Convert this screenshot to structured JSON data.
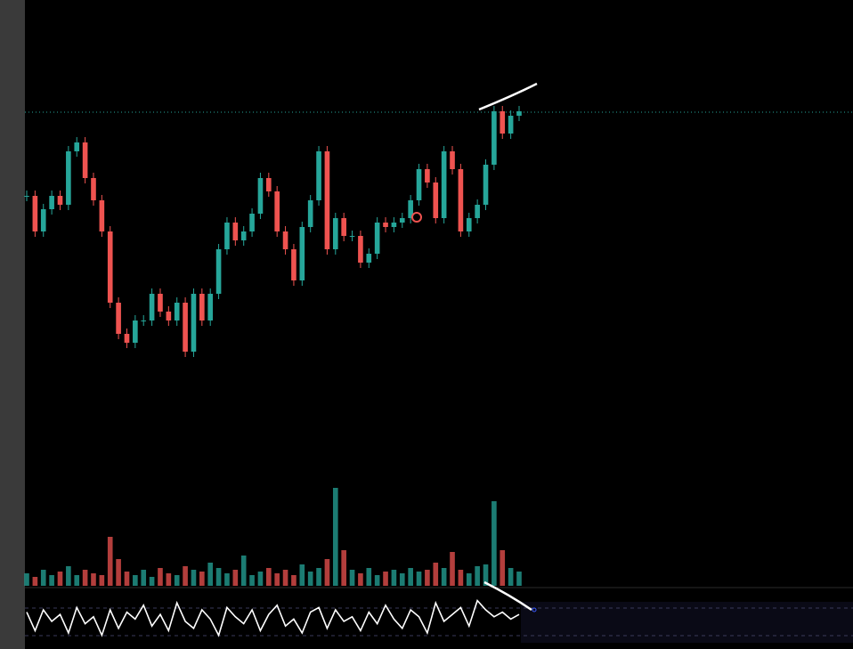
{
  "chart_data": {
    "type": "candlestick",
    "up_color": "#26a69a",
    "down_color": "#ef5350",
    "values": [
      210,
      170,
      195,
      210,
      200,
      260,
      270,
      230,
      205,
      170,
      90,
      55,
      45,
      70,
      70,
      100,
      80,
      70,
      90,
      35,
      100,
      70,
      100,
      150,
      180,
      160,
      170,
      190,
      230,
      215,
      170,
      150,
      115,
      175,
      205,
      260,
      150,
      185,
      165,
      165,
      135,
      145,
      180,
      175,
      180,
      185,
      205,
      240,
      225,
      185,
      260,
      240,
      170,
      185,
      200,
      245,
      305,
      280,
      300,
      305
    ],
    "ylim": [
      0,
      320
    ],
    "volume": {
      "values": [
        14,
        10,
        18,
        12,
        16,
        22,
        12,
        18,
        14,
        12,
        55,
        30,
        16,
        12,
        18,
        10,
        20,
        14,
        12,
        22,
        18,
        16,
        26,
        20,
        14,
        18,
        34,
        12,
        16,
        20,
        14,
        18,
        12,
        24,
        16,
        20,
        30,
        110,
        40,
        18,
        14,
        20,
        12,
        16,
        18,
        14,
        20,
        16,
        18,
        26,
        20,
        38,
        18,
        14,
        22,
        24,
        95,
        40,
        20,
        16
      ],
      "ylim": [
        0,
        120
      ]
    },
    "oscillator": {
      "values": [
        28,
        12,
        30,
        20,
        26,
        10,
        32,
        18,
        24,
        8,
        30,
        14,
        28,
        22,
        34,
        16,
        26,
        12,
        36,
        20,
        14,
        30,
        22,
        8,
        32,
        24,
        18,
        30,
        12,
        26,
        34,
        16,
        22,
        10,
        28,
        32,
        14,
        30,
        20,
        24,
        12,
        28,
        18,
        34,
        22,
        14,
        30,
        24,
        10,
        36,
        20,
        26,
        32,
        16,
        38,
        30,
        24,
        28,
        22,
        26
      ],
      "ylim": [
        0,
        40
      ]
    }
  }
}
